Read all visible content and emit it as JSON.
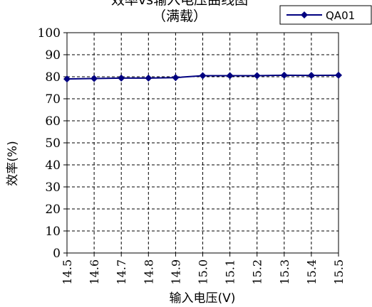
{
  "chart_data": {
    "type": "line",
    "title_line1": "效率vs输入电压曲线图",
    "title_line2": "（满载）",
    "xlabel": "输入电压(V)",
    "ylabel": "效率(%)",
    "x": [
      "14.5",
      "14.6",
      "14.7",
      "14.8",
      "14.9",
      "15.0",
      "15.1",
      "15.2",
      "15.3",
      "15.4",
      "15.5"
    ],
    "ylim": [
      0,
      100
    ],
    "yticks": [
      0,
      10,
      20,
      30,
      40,
      50,
      60,
      70,
      80,
      90,
      100
    ],
    "grid": true,
    "legend_position": "top-right",
    "series": [
      {
        "name": "QA01",
        "color": "#000080",
        "marker": "diamond",
        "values": [
          79.0,
          79.2,
          79.4,
          79.4,
          79.6,
          80.5,
          80.5,
          80.5,
          80.7,
          80.6,
          80.7
        ]
      }
    ]
  }
}
